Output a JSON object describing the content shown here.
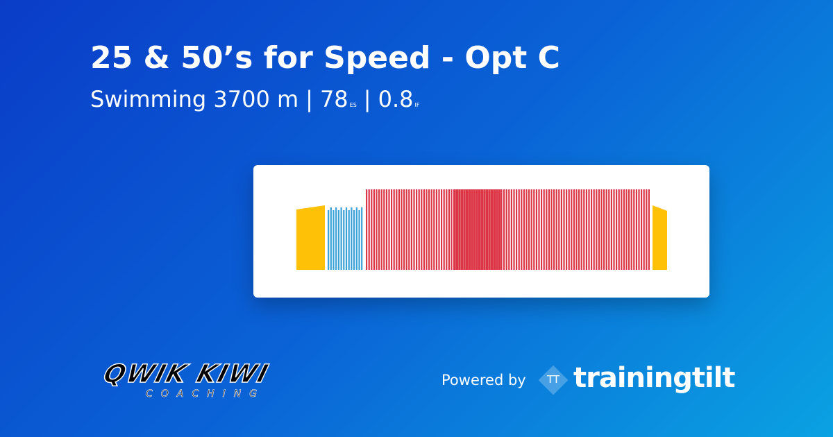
{
  "title": "25 & 50’s for Speed - Opt C",
  "subtitle": {
    "sport": "Swimming 3700 m",
    "separator": "|",
    "es_value": "78",
    "es_unit": "ES",
    "if_value": "0.8",
    "if_unit": "IF"
  },
  "logo": {
    "name": "QWIK KIWI",
    "tagline": "COACHING"
  },
  "powered": {
    "text": "Powered by",
    "icon": "TT",
    "brand": "trainingtilt"
  }
}
